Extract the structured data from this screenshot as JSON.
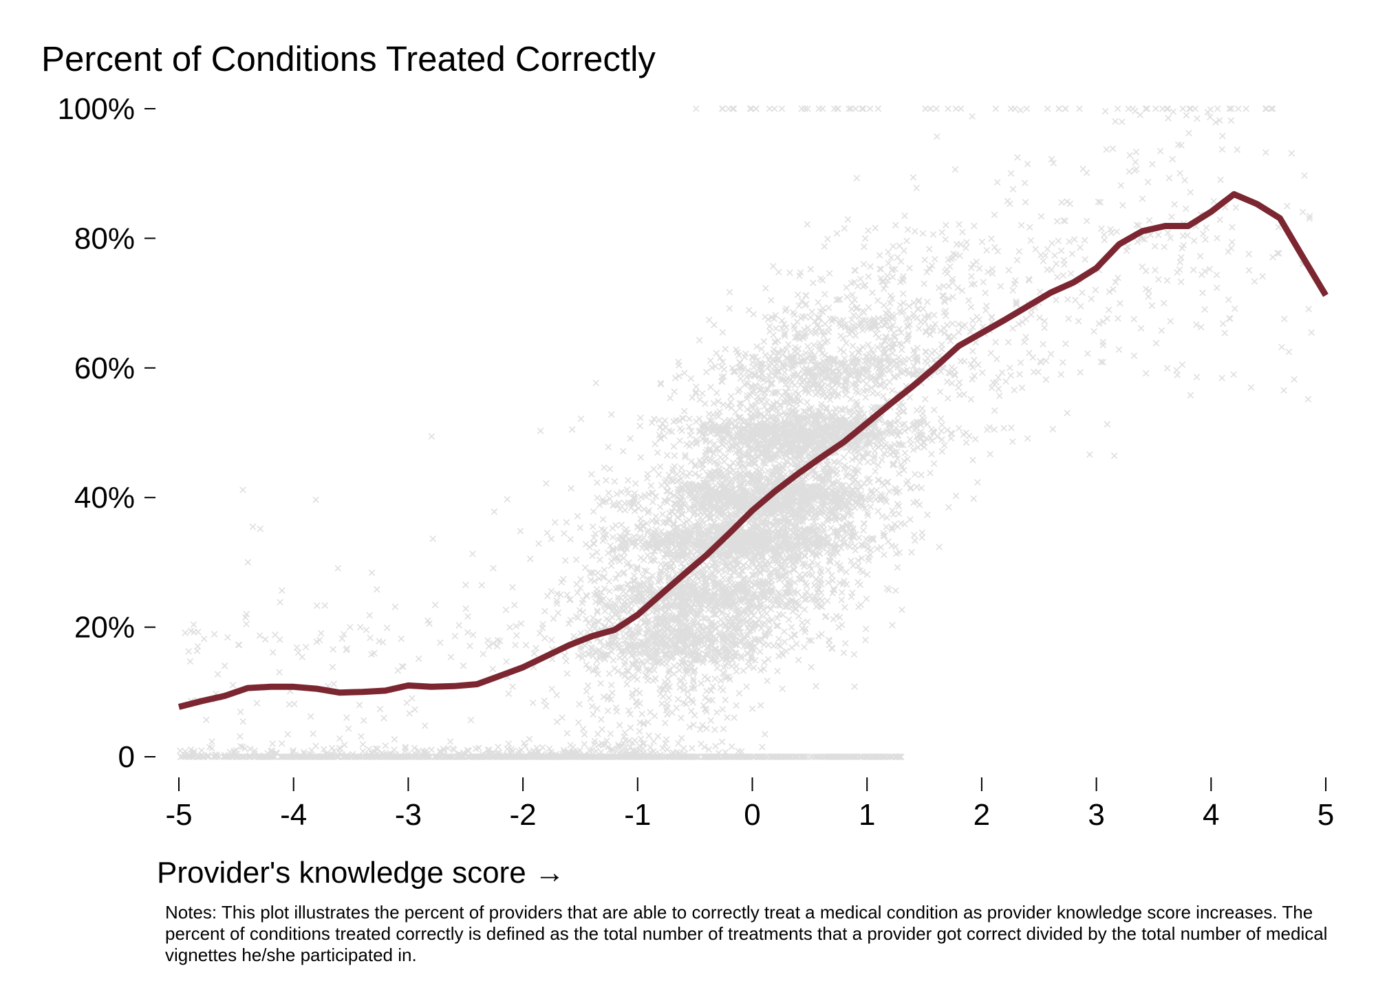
{
  "chart_data": {
    "type": "scatter",
    "title": "Percent of Conditions Treated Correctly",
    "xlabel": "Provider's knowledge score →",
    "ylabel": "",
    "xlim": [
      -5,
      5
    ],
    "ylim": [
      0,
      100
    ],
    "x_ticks": [
      "-5",
      "-4",
      "-3",
      "-2",
      "-1",
      "0",
      "1",
      "2",
      "3",
      "4",
      "5"
    ],
    "y_ticks": [
      {
        "value": 0,
        "label": "0"
      },
      {
        "value": 20,
        "label": "20%"
      },
      {
        "value": 40,
        "label": "40%"
      },
      {
        "value": 60,
        "label": "60%"
      },
      {
        "value": 80,
        "label": "80%"
      },
      {
        "value": 100,
        "label": "100%"
      }
    ],
    "grid": false,
    "legend": "none",
    "marker": "x",
    "colors": {
      "points": "#000000",
      "trend_line": "#7b2630"
    },
    "series": [
      {
        "type": "line",
        "x": [
          -5.0,
          -4.8,
          -4.6,
          -4.4,
          -4.2,
          -4.0,
          -3.8,
          -3.6,
          -3.4,
          -3.2,
          -3.0,
          -2.8,
          -2.6,
          -2.4,
          -2.2,
          -2.0,
          -1.8,
          -1.6,
          -1.4,
          -1.2,
          -1.0,
          -0.8,
          -0.6,
          -0.4,
          -0.2,
          0.0,
          0.2,
          0.4,
          0.6,
          0.8,
          1.0,
          1.2,
          1.4,
          1.6,
          1.8,
          2.0,
          2.2,
          2.4,
          2.6,
          2.8,
          3.0,
          3.2,
          3.4,
          3.6,
          3.8,
          4.0,
          4.2,
          4.4,
          4.6,
          4.8,
          5.0
        ],
        "y": [
          7.7,
          8.6,
          9.4,
          10.6,
          10.8,
          10.8,
          10.5,
          9.9,
          10.0,
          10.2,
          11.0,
          10.8,
          10.9,
          11.2,
          12.5,
          13.8,
          15.5,
          17.2,
          18.6,
          19.6,
          21.9,
          25.0,
          28.1,
          31.1,
          34.5,
          38.0,
          41.0,
          43.7,
          46.2,
          48.6,
          51.5,
          54.4,
          57.2,
          60.2,
          63.4,
          65.4,
          67.4,
          69.5,
          71.6,
          73.2,
          75.4,
          79.1,
          81.1,
          81.9,
          81.9,
          84.1,
          86.8,
          85.3,
          83.1,
          77.1,
          71.2
        ]
      },
      {
        "type": "scatter",
        "point_cloud": "several thousand provider-level observations, densest between x = -1 and x = 1.5, with stacked bands at 0%, 20%, 33%, 50% and 67%",
        "n_points": 7500
      }
    ]
  },
  "notes": "Notes: This plot illustrates the percent of providers that are able to correctly treat a medical condition as provider knowledge score increases. The percent of conditions treated correctly is defined as the total number of treatments that a provider got correct divided by the total number of medical vignettes he/she participated in."
}
